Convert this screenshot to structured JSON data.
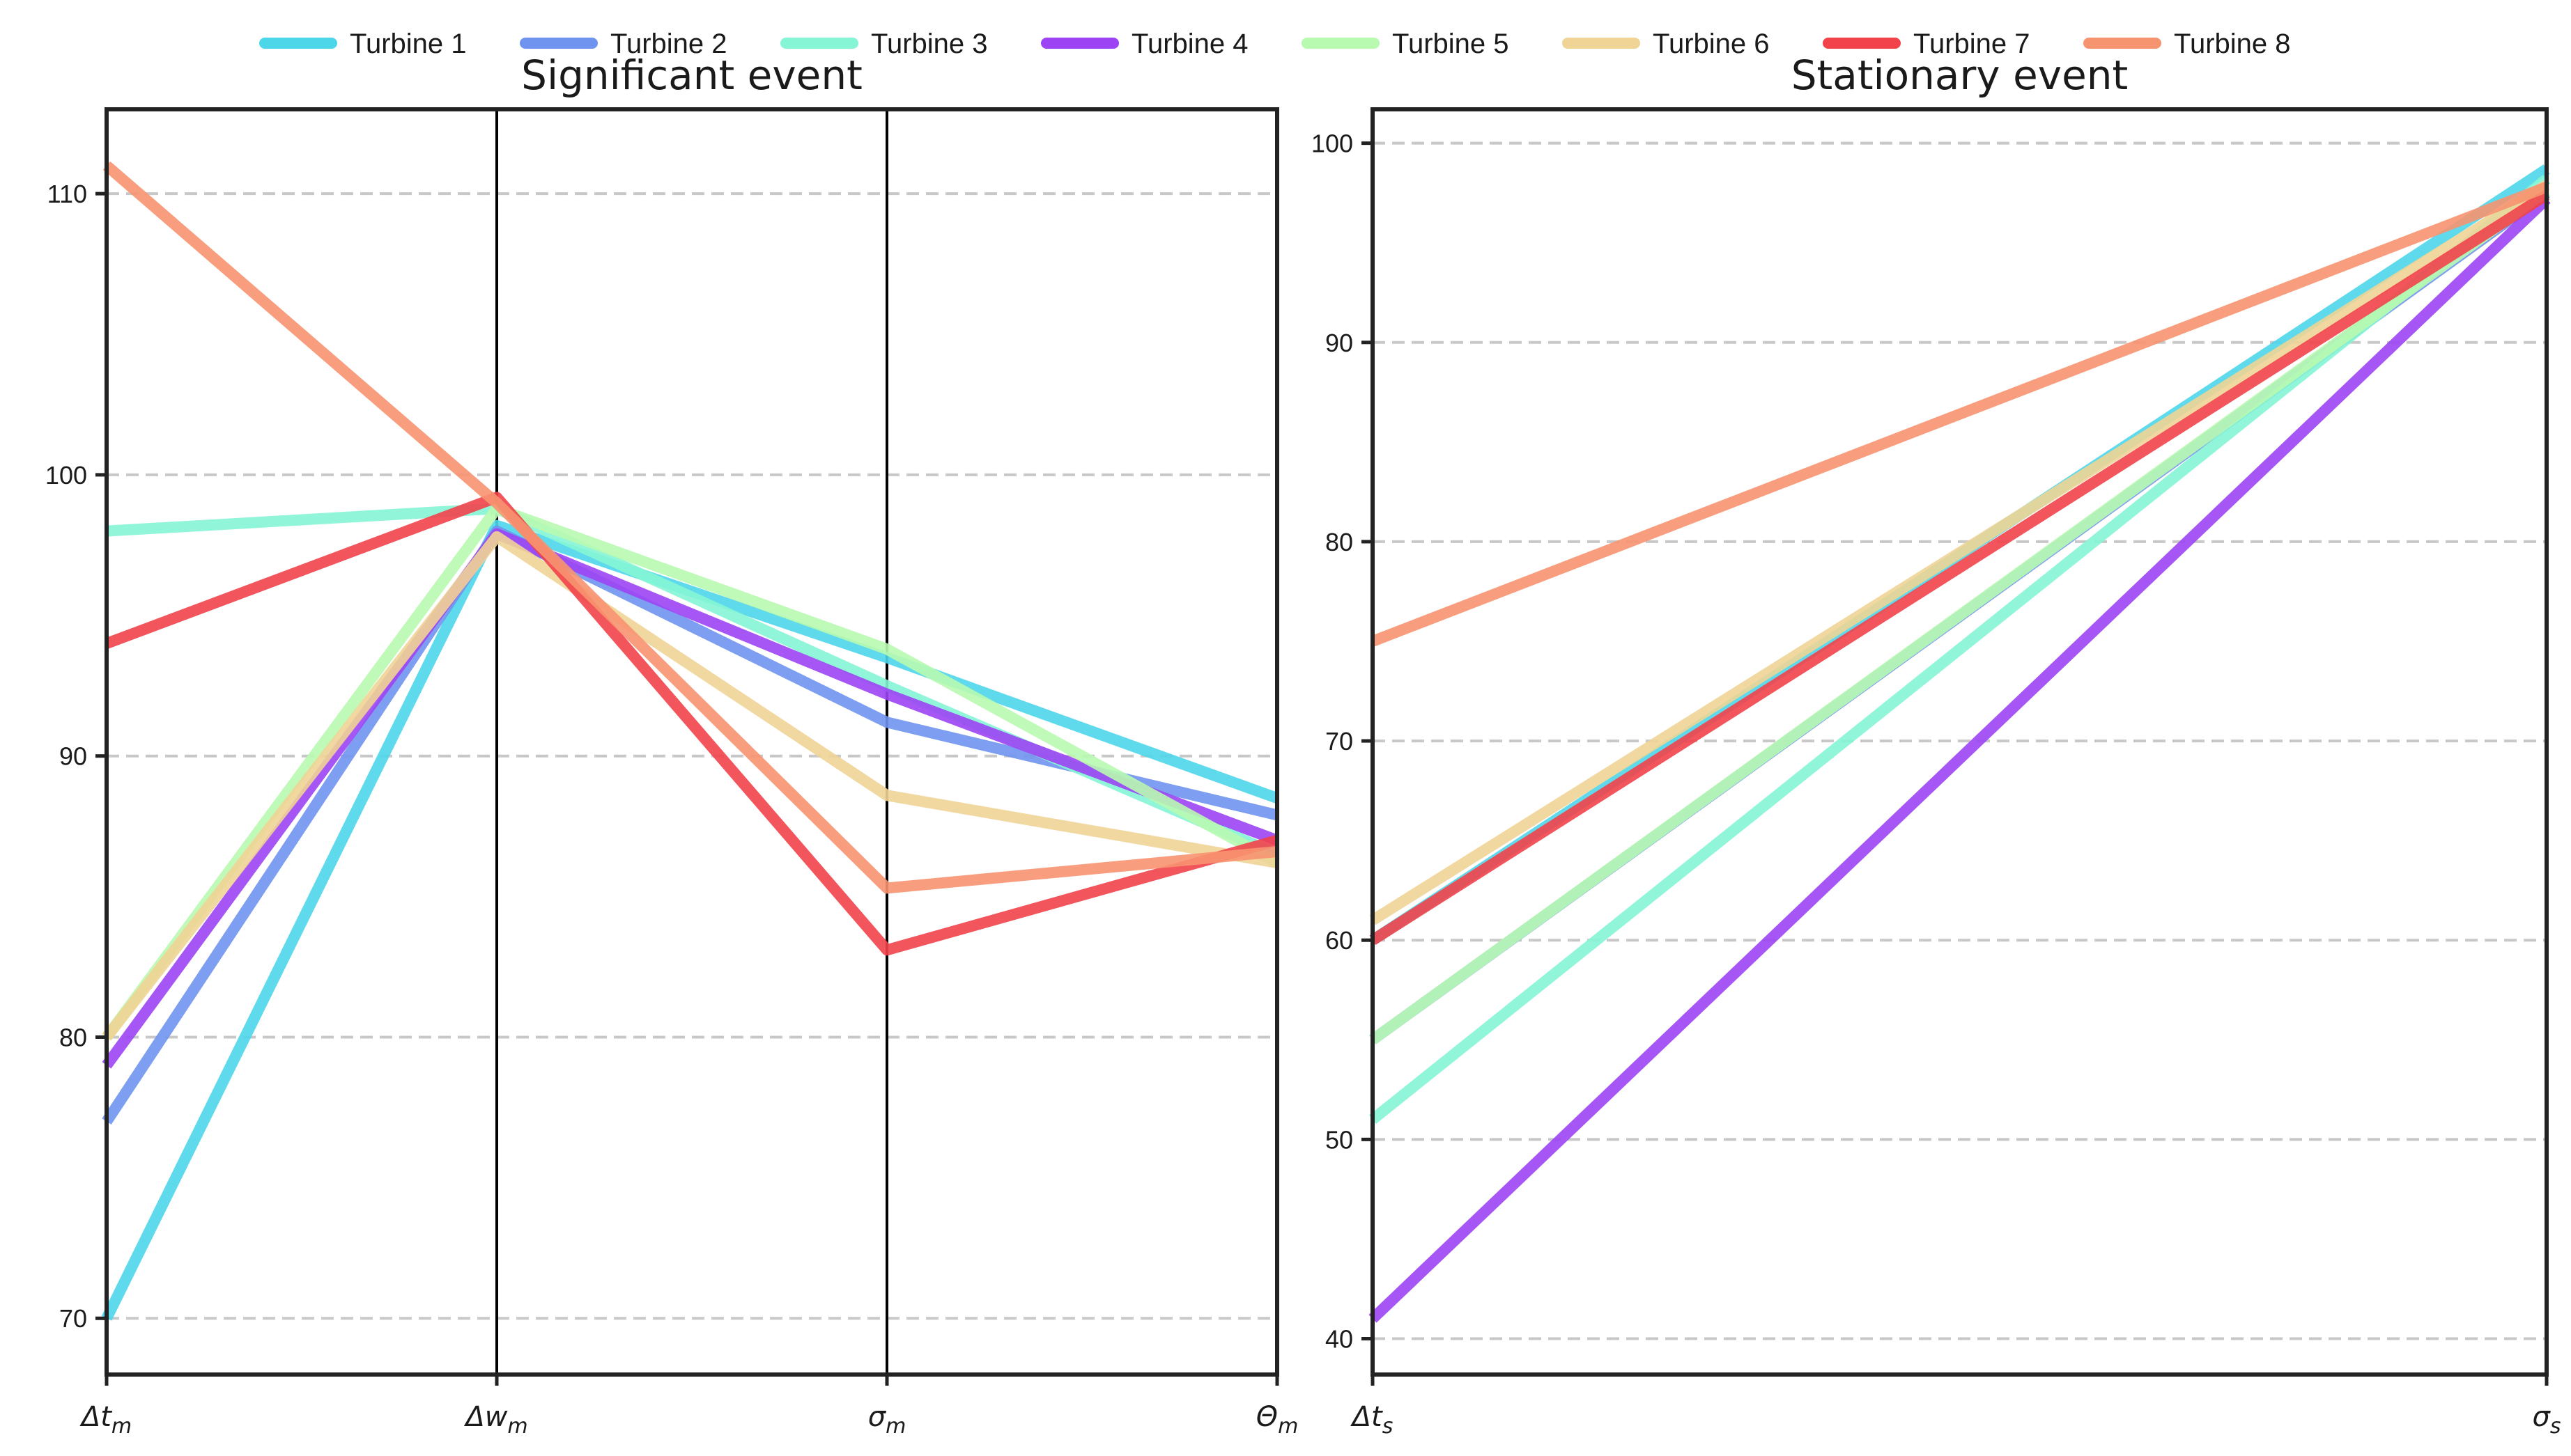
{
  "legend": [
    {
      "name": "Turbine 1",
      "color": "#4dd6ea"
    },
    {
      "name": "Turbine 2",
      "color": "#6f94f0"
    },
    {
      "name": "Turbine 3",
      "color": "#85f5d5"
    },
    {
      "name": "Turbine 4",
      "color": "#9c44f3"
    },
    {
      "name": "Turbine 5",
      "color": "#b8fab0"
    },
    {
      "name": "Turbine 6",
      "color": "#efd496"
    },
    {
      "name": "Turbine 7",
      "color": "#f2424a"
    },
    {
      "name": "Turbine 8",
      "color": "#f79470"
    }
  ],
  "chart_data": [
    {
      "type": "line",
      "title": "Significant event",
      "categories": [
        "Δt_m",
        "Δw_m",
        "σ_m",
        "Θ_m"
      ],
      "category_labels": [
        {
          "base": "Δt",
          "sub": "m"
        },
        {
          "base": "Δw",
          "sub": "m"
        },
        {
          "base": "σ",
          "sub": "m"
        },
        {
          "base": "Θ",
          "sub": "m"
        }
      ],
      "ylim": [
        68,
        113
      ],
      "yticks": [
        70,
        80,
        90,
        100,
        110
      ],
      "grid": true,
      "series": [
        {
          "name": "Turbine 1",
          "values": [
            70,
            98.2,
            93.5,
            88.5
          ]
        },
        {
          "name": "Turbine 2",
          "values": [
            77,
            98.0,
            91.2,
            87.9
          ]
        },
        {
          "name": "Turbine 3",
          "values": [
            98,
            98.8,
            92.5,
            86.5
          ]
        },
        {
          "name": "Turbine 4",
          "values": [
            79,
            97.9,
            92.2,
            87.0
          ]
        },
        {
          "name": "Turbine 5",
          "values": [
            80,
            98.8,
            93.8,
            86.2
          ]
        },
        {
          "name": "Turbine 6",
          "values": [
            80,
            97.8,
            88.6,
            86.2
          ]
        },
        {
          "name": "Turbine 7",
          "values": [
            94,
            99.2,
            83.1,
            87.0
          ]
        },
        {
          "name": "Turbine 8",
          "values": [
            111,
            99.0,
            85.3,
            86.6
          ]
        }
      ]
    },
    {
      "type": "line",
      "title": "Stationary event",
      "categories": [
        "Δt_s",
        "σ_s"
      ],
      "category_labels": [
        {
          "base": "Δt",
          "sub": "s"
        },
        {
          "base": "σ",
          "sub": "s"
        }
      ],
      "ylim": [
        38.2,
        101.7
      ],
      "yticks": [
        40,
        50,
        60,
        70,
        80,
        90,
        100
      ],
      "grid": true,
      "series": [
        {
          "name": "Turbine 1",
          "values": [
            60,
            98.7
          ]
        },
        {
          "name": "Turbine 2",
          "values": [
            55,
            97.5
          ]
        },
        {
          "name": "Turbine 3",
          "values": [
            51,
            98.2
          ]
        },
        {
          "name": "Turbine 4",
          "values": [
            41,
            97.2
          ]
        },
        {
          "name": "Turbine 5",
          "values": [
            55,
            97.6
          ]
        },
        {
          "name": "Turbine 6",
          "values": [
            61,
            97.9
          ]
        },
        {
          "name": "Turbine 7",
          "values": [
            60,
            97.4
          ]
        },
        {
          "name": "Turbine 8",
          "values": [
            75,
            97.8
          ]
        }
      ]
    }
  ]
}
